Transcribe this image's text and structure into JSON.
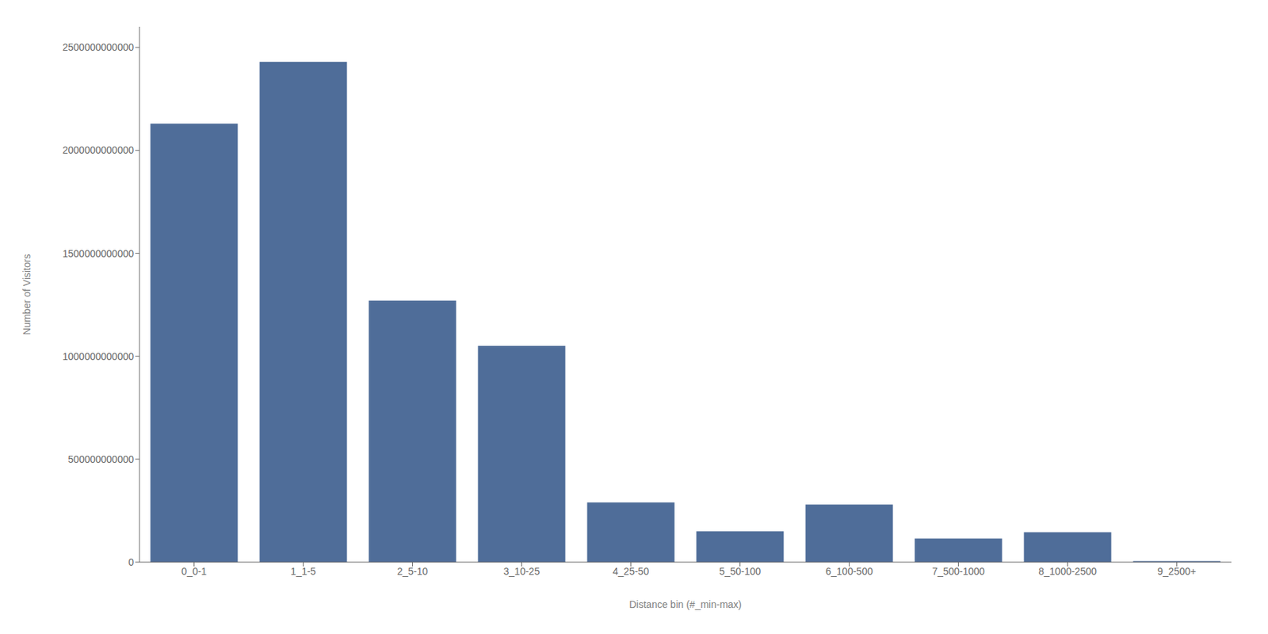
{
  "chart_data": {
    "type": "bar",
    "categories": [
      "0_0-1",
      "1_1-5",
      "2_5-10",
      "3_10-25",
      "4_25-50",
      "5_50-100",
      "6_100-500",
      "7_500-1000",
      "8_1000-2500",
      "9_2500+"
    ],
    "values": [
      2130000000000.0,
      2430000000000.0,
      1270000000000.0,
      1050000000000.0,
      290000000000.0,
      150000000000.0,
      280000000000.0,
      115000000000.0,
      145000000000.0,
      5000000000.0
    ],
    "color": "#4f6d99",
    "xlabel": "Distance bin (#_min-max)",
    "ylabel": "Number of Visitors",
    "ylim": [
      0,
      2600000000000.0
    ],
    "yticks": [
      0,
      500000000000,
      1000000000000,
      1500000000000,
      2000000000000,
      2500000000000
    ],
    "grid": false
  }
}
